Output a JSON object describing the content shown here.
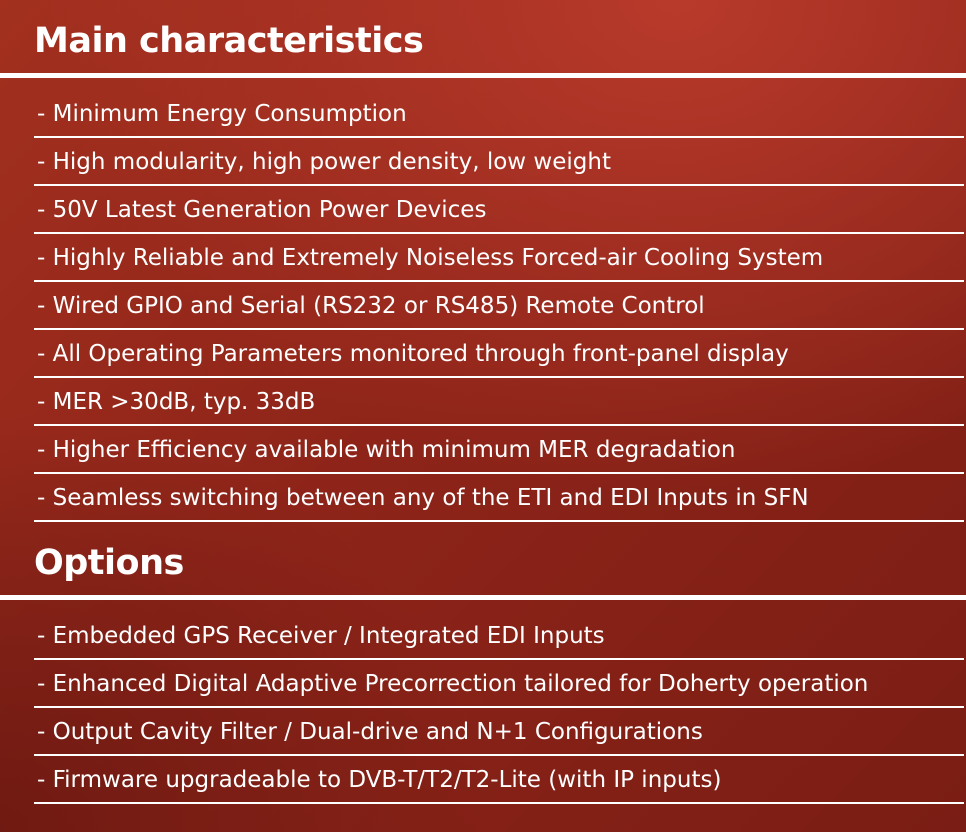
{
  "main": {
    "title": "Main characteristics",
    "items": [
      "- Minimum Energy Consumption",
      "- High modularity, high power density, low weight",
      "- 50V Latest Generation Power Devices",
      "- Highly Reliable and Extremely Noiseless Forced-air Cooling System",
      "- Wired GPIO and Serial (RS232 or RS485) Remote Control",
      "- All Operating Parameters monitored through front-panel display",
      "- MER >30dB, typ. 33dB",
      "- Higher Efficiency available with minimum MER degradation",
      "- Seamless switching between any of the ETI and EDI Inputs in SFN"
    ]
  },
  "options": {
    "title": "Options",
    "items": [
      "- Embedded GPS Receiver / Integrated EDI Inputs",
      "- Enhanced Digital Adaptive Precorrection tailored for Doherty operation",
      "- Output Cavity Filter / Dual-drive and N+1 Configurations",
      "- Firmware upgradeable to DVB-T/T2/T2-Lite (with IP inputs)"
    ]
  },
  "colors": {
    "background": "#8e2419",
    "text": "#ffffff",
    "rule": "#ffffff"
  }
}
